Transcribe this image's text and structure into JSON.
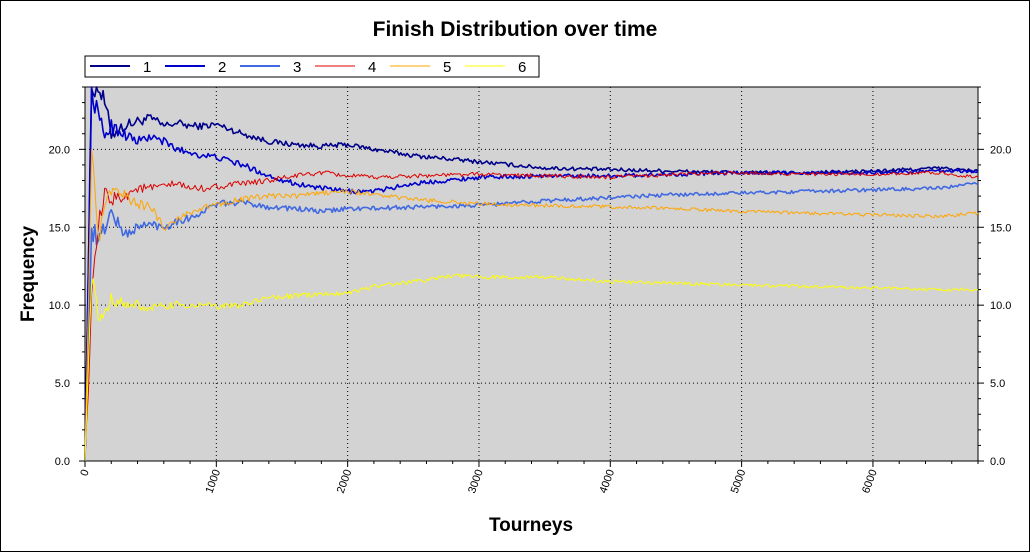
{
  "chart_data": {
    "type": "line",
    "title": "Finish Distribution over time",
    "xlabel": "Tourneys",
    "ylabel": "Frequency",
    "xlim": [
      0,
      6800
    ],
    "ylim": [
      0,
      24
    ],
    "x_ticks": [
      0,
      1000,
      2000,
      3000,
      4000,
      5000,
      6000
    ],
    "x_tick_labels": [
      "0",
      "1000",
      "2000",
      "3000",
      "4000",
      "5000",
      "6000"
    ],
    "y_ticks": [
      0,
      5,
      10,
      15,
      20
    ],
    "y_tick_labels": [
      "0.0",
      "5.0",
      "10.0",
      "15.0",
      "20.0"
    ],
    "grid": true,
    "legend_position": "top-left",
    "plot_background": "#d3d3d3",
    "series": [
      {
        "name": "1",
        "color": "#00008b",
        "x": [
          0,
          50,
          100,
          150,
          200,
          300,
          400,
          500,
          600,
          700,
          800,
          900,
          1000,
          1200,
          1400,
          1600,
          1800,
          2000,
          2200,
          2500,
          3000,
          3500,
          4000,
          4500,
          5000,
          5500,
          6000,
          6500,
          6800
        ],
        "y": [
          0,
          24,
          24,
          23,
          21,
          21.5,
          21.8,
          22,
          21.5,
          21.7,
          21.5,
          21.5,
          21.6,
          21,
          20.5,
          20.3,
          20.2,
          20.3,
          20,
          19.6,
          19.2,
          18.8,
          18.7,
          18.6,
          18.5,
          18.5,
          18.6,
          18.8,
          18.6
        ]
      },
      {
        "name": "2",
        "color": "#0000cd",
        "x": [
          0,
          50,
          100,
          150,
          200,
          300,
          400,
          500,
          600,
          700,
          800,
          900,
          1000,
          1200,
          1400,
          1600,
          1800,
          2000,
          2200,
          2500,
          3000,
          3500,
          4000,
          4500,
          5000,
          5500,
          6000,
          6500,
          6800
        ],
        "y": [
          0,
          24,
          22,
          21,
          21.5,
          21,
          20.5,
          20.8,
          20.5,
          20,
          19.8,
          19.6,
          19.5,
          19,
          18.3,
          17.8,
          17.5,
          17.3,
          17.3,
          17.8,
          18.2,
          18.3,
          18.3,
          18.4,
          18.5,
          18.5,
          18.5,
          18.6,
          18.6
        ]
      },
      {
        "name": "3",
        "color": "#4169e1",
        "x": [
          0,
          50,
          100,
          150,
          200,
          300,
          400,
          500,
          600,
          700,
          800,
          900,
          1000,
          1200,
          1400,
          1600,
          1800,
          2000,
          2200,
          2500,
          3000,
          3500,
          4000,
          4500,
          5000,
          5500,
          6000,
          6500,
          6800
        ],
        "y": [
          0,
          15,
          14,
          15,
          16,
          14.5,
          15,
          15.2,
          15,
          15.4,
          15.6,
          16,
          16.5,
          16.6,
          16.3,
          16.2,
          16,
          16.2,
          16.2,
          16.3,
          16.4,
          16.7,
          16.9,
          17.1,
          17.2,
          17.3,
          17.4,
          17.5,
          17.8
        ]
      },
      {
        "name": "4",
        "color": "#dd0000",
        "x": [
          0,
          50,
          100,
          150,
          200,
          300,
          400,
          500,
          600,
          700,
          800,
          900,
          1000,
          1200,
          1400,
          1600,
          1800,
          2000,
          2200,
          2500,
          3000,
          3500,
          4000,
          4500,
          5000,
          5500,
          6000,
          6500,
          6800
        ],
        "y": [
          0,
          10,
          15,
          17,
          16.8,
          17,
          17.5,
          17.5,
          17.6,
          17.8,
          17.5,
          17.5,
          17.6,
          17.8,
          18,
          18.3,
          18.5,
          18.3,
          18.2,
          18.3,
          18.4,
          18.3,
          18.2,
          18.4,
          18.5,
          18.4,
          18.4,
          18.5,
          18.2
        ]
      },
      {
        "name": "5",
        "color": "#ffa500",
        "x": [
          0,
          50,
          100,
          150,
          200,
          300,
          400,
          500,
          600,
          700,
          800,
          900,
          1000,
          1200,
          1400,
          1600,
          1800,
          2000,
          2200,
          2500,
          3000,
          3500,
          4000,
          4500,
          5000,
          5500,
          6000,
          6500,
          6800
        ],
        "y": [
          0,
          20,
          14,
          16,
          17.5,
          17,
          16.5,
          16.3,
          15,
          15.5,
          16,
          16.2,
          16.5,
          16.8,
          17,
          17,
          17.2,
          17.3,
          17.1,
          16.8,
          16.5,
          16.4,
          16.3,
          16.2,
          16,
          15.9,
          15.8,
          15.7,
          15.9
        ]
      },
      {
        "name": "6",
        "color": "#ffff00",
        "x": [
          0,
          50,
          100,
          150,
          200,
          300,
          400,
          500,
          600,
          700,
          800,
          900,
          1000,
          1200,
          1400,
          1600,
          1800,
          2000,
          2200,
          2500,
          2800,
          3000,
          3500,
          4000,
          4500,
          5000,
          5500,
          6000,
          6500,
          6800
        ],
        "y": [
          0,
          12,
          9,
          9.5,
          10.5,
          10,
          10,
          9.8,
          9.9,
          10,
          10,
          10,
          9.9,
          10,
          10.5,
          10.6,
          10.7,
          10.8,
          11.2,
          11.5,
          11.9,
          11.8,
          11.8,
          11.5,
          11.4,
          11.3,
          11.2,
          11.1,
          11,
          11
        ]
      }
    ]
  }
}
